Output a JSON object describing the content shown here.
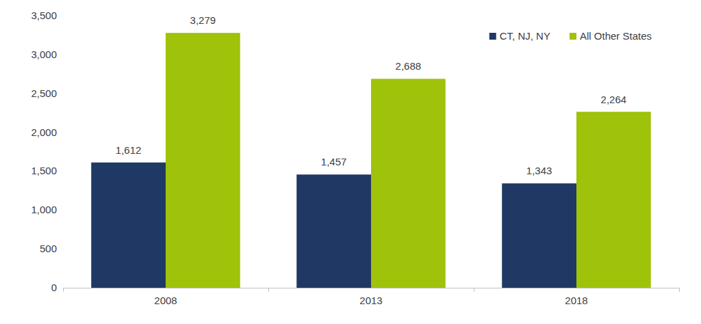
{
  "chart_data": {
    "type": "bar",
    "categories": [
      "2008",
      "2013",
      "2018"
    ],
    "series": [
      {
        "name": "CT, NJ, NY",
        "color": "#203864",
        "values": [
          1612,
          1457,
          1343
        ],
        "value_labels": [
          "1,612",
          "1,457",
          "1,343"
        ]
      },
      {
        "name": "All Other States",
        "color": "#9fc20a",
        "values": [
          3279,
          2688,
          2264
        ],
        "value_labels": [
          "3,279",
          "2,688",
          "2,264"
        ]
      }
    ],
    "ylim": [
      0,
      3500
    ],
    "yticks": [
      0,
      500,
      {
        "value": 1000,
        "label": "1,000"
      },
      {
        "value": 1500,
        "label": "1,500"
      },
      {
        "value": 2000,
        "label": "2,000"
      },
      {
        "value": 2500,
        "label": "2,500"
      },
      {
        "value": 3000,
        "label": "3,000"
      },
      {
        "value": 3500,
        "label": "3,500"
      }
    ],
    "grid": false,
    "legend": "top-right",
    "data_labels": true
  }
}
